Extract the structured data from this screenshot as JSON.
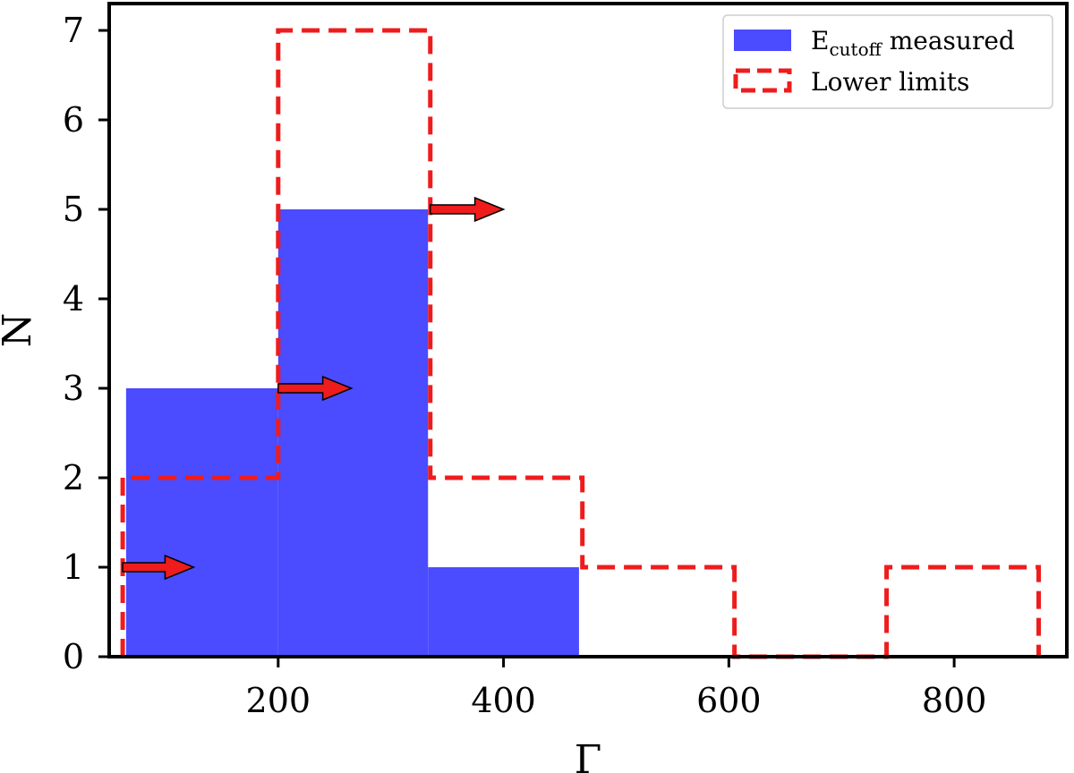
{
  "chart_data": {
    "type": "bar",
    "xlabel": "Γ",
    "ylabel": "N",
    "xlim": [
      50,
      900
    ],
    "ylim": [
      0,
      7.3
    ],
    "xticks": [
      200,
      400,
      600,
      800
    ],
    "yticks": [
      0,
      1,
      2,
      3,
      4,
      5,
      6,
      7
    ],
    "grid": false,
    "legend_position": "top-right",
    "series": [
      {
        "name": "E",
        "name_subscript": "cutoff",
        "name_suffix": " measured",
        "style": "filled",
        "color": "#4b4bff",
        "bins": [
          {
            "x0": 65,
            "x1": 200,
            "count": 3
          },
          {
            "x0": 200,
            "x1": 333,
            "count": 5
          },
          {
            "x0": 333,
            "x1": 467,
            "count": 1
          }
        ]
      },
      {
        "name": "Lower limits",
        "style": "dashed-step",
        "color": "#ee1c1c",
        "bins": [
          {
            "x0": 62,
            "x1": 200,
            "count": 2
          },
          {
            "x0": 200,
            "x1": 335,
            "count": 7
          },
          {
            "x0": 335,
            "x1": 470,
            "count": 2
          },
          {
            "x0": 470,
            "x1": 605,
            "count": 1
          },
          {
            "x0": 605,
            "x1": 740,
            "count": 0
          },
          {
            "x0": 740,
            "x1": 875,
            "count": 1
          }
        ]
      }
    ],
    "annotations": [
      {
        "type": "arrow",
        "x": 62,
        "y": 1,
        "x_end": 125,
        "color": "#ee1c1c"
      },
      {
        "type": "arrow",
        "x": 200,
        "y": 3,
        "x_end": 265,
        "color": "#ee1c1c"
      },
      {
        "type": "arrow",
        "x": 335,
        "y": 5,
        "x_end": 400,
        "color": "#ee1c1c"
      }
    ]
  }
}
